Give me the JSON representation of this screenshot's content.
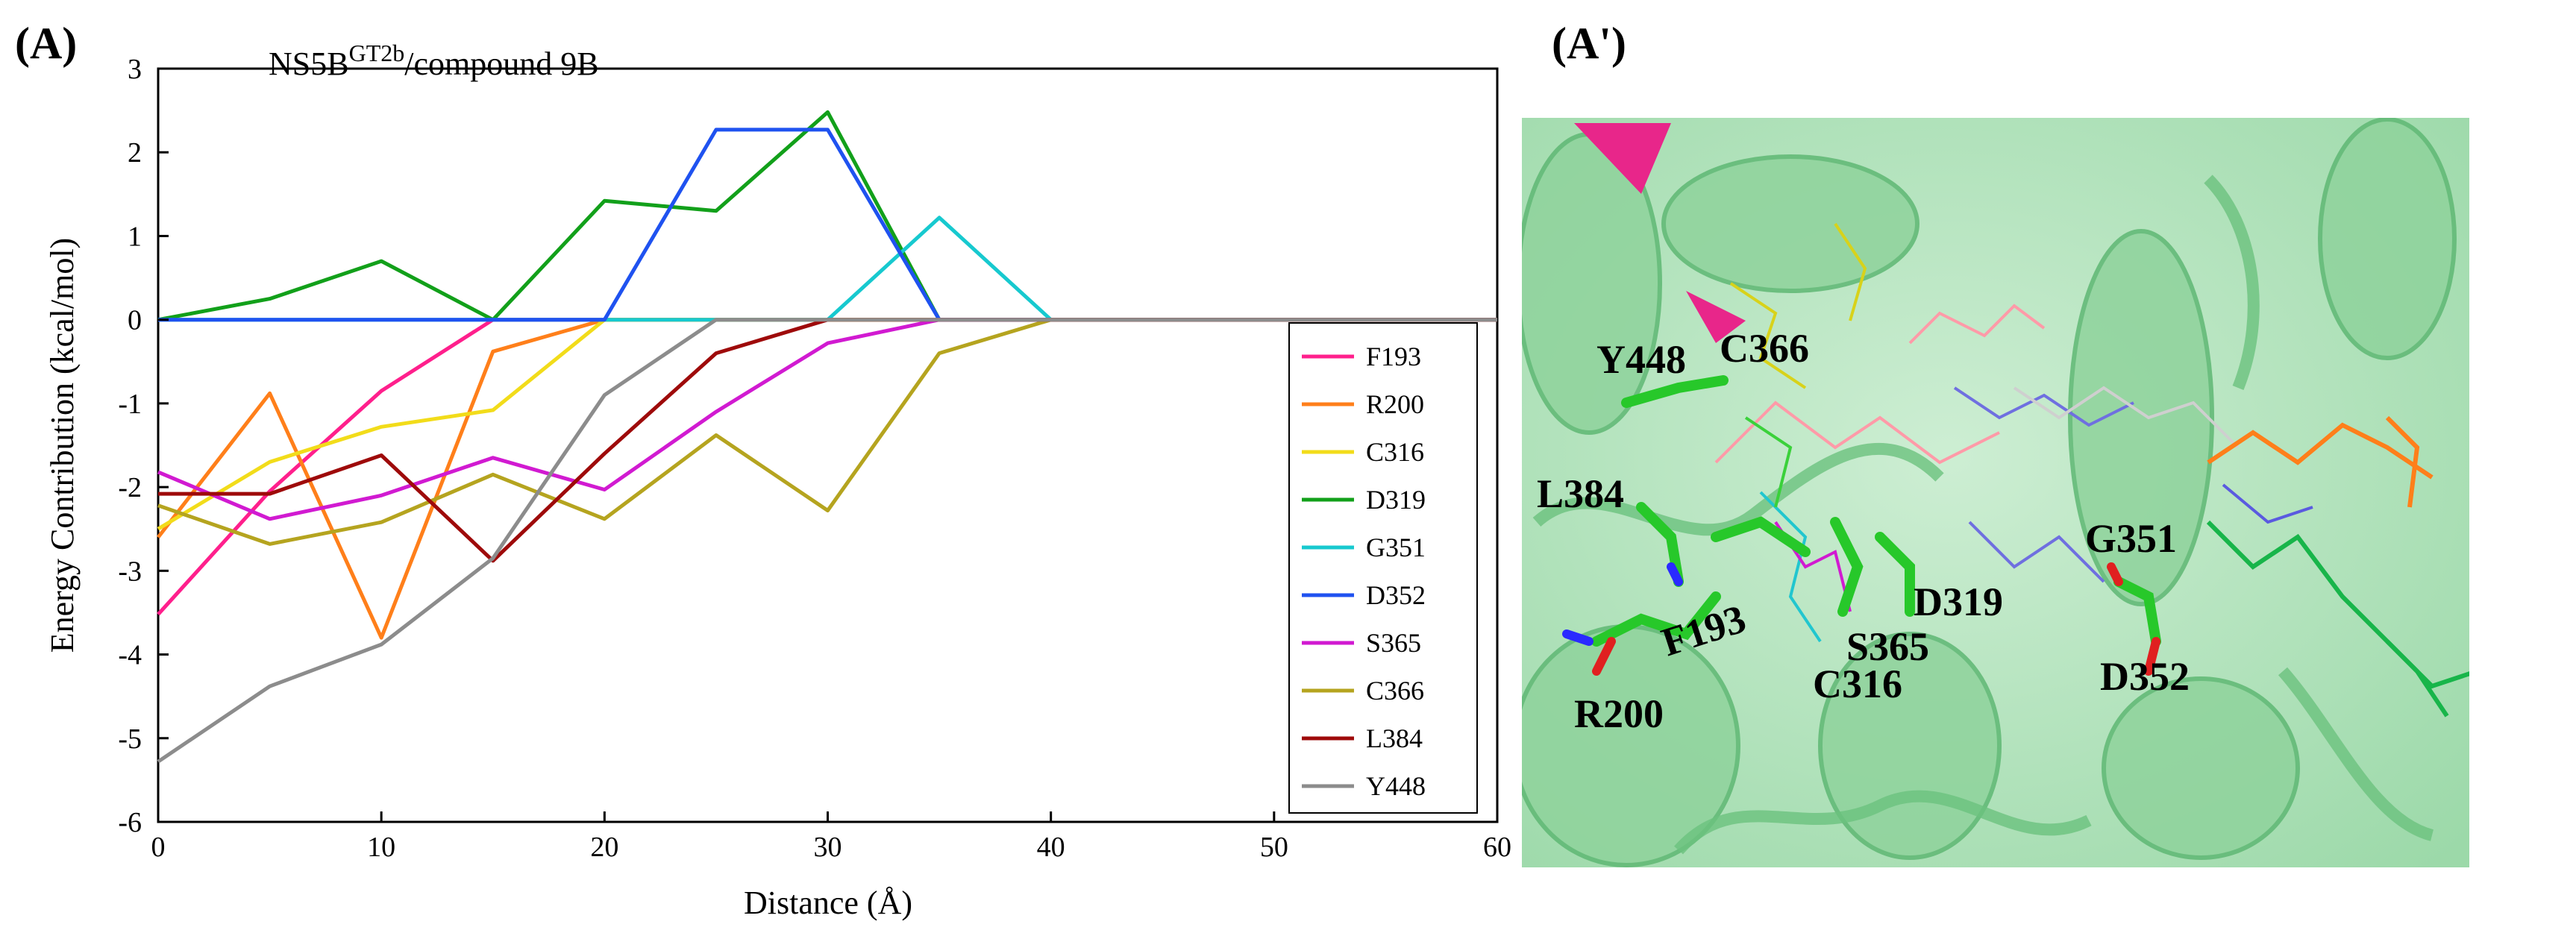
{
  "panel_a_label": "(A)",
  "panel_a_prime_label": "(A')",
  "chart_data": {
    "type": "line",
    "title": "NS5B",
    "title_superscript": "GT2b",
    "title_suffix": "/compound 9B",
    "xlabel": "Distance (Å)",
    "ylabel": "Energy Contribution (kcal/mol)",
    "xlim": [
      0,
      60
    ],
    "ylim": [
      -6,
      3
    ],
    "xticks": [
      0,
      10,
      20,
      30,
      40,
      50,
      60
    ],
    "yticks": [
      3,
      2,
      1,
      0,
      -1,
      -2,
      -3,
      -4,
      -5,
      -6
    ],
    "grid": false,
    "legend_position": "right",
    "series": [
      {
        "name": "F193",
        "color": "#ff1f8c",
        "x": [
          0,
          5,
          10,
          15,
          60
        ],
        "values": [
          -3.52,
          -2.05,
          -0.85,
          0,
          0
        ]
      },
      {
        "name": "R200",
        "color": "#ff7f1a",
        "x": [
          0,
          5,
          10,
          15,
          20,
          60
        ],
        "values": [
          -2.6,
          -0.88,
          -3.8,
          -0.38,
          0,
          0
        ]
      },
      {
        "name": "C316",
        "color": "#f2dc1a",
        "x": [
          0,
          5,
          10,
          15,
          20,
          60
        ],
        "values": [
          -2.5,
          -1.7,
          -1.28,
          -1.08,
          0,
          0
        ]
      },
      {
        "name": "D319",
        "color": "#12a01a",
        "x": [
          0,
          5,
          10,
          15,
          20,
          25,
          30,
          35,
          60
        ],
        "values": [
          0,
          0.25,
          0.7,
          0,
          1.42,
          1.3,
          2.48,
          0,
          0
        ]
      },
      {
        "name": "G351",
        "color": "#17c9cf",
        "x": [
          0,
          30,
          35,
          40,
          60
        ],
        "values": [
          0,
          0,
          1.22,
          0,
          0
        ]
      },
      {
        "name": "D352",
        "color": "#1f52f0",
        "x": [
          0,
          20,
          25,
          30,
          35,
          60
        ],
        "values": [
          0,
          0,
          2.27,
          2.27,
          0,
          0
        ]
      },
      {
        "name": "S365",
        "color": "#d11ad1",
        "x": [
          0,
          5,
          10,
          15,
          20,
          25,
          30,
          35,
          60
        ],
        "values": [
          -1.82,
          -2.38,
          -2.1,
          -1.65,
          -2.03,
          -1.1,
          -0.28,
          0,
          0
        ]
      },
      {
        "name": "C366",
        "color": "#b5a41f",
        "x": [
          0,
          5,
          10,
          15,
          20,
          25,
          30,
          35,
          40,
          60
        ],
        "values": [
          -2.22,
          -2.68,
          -2.42,
          -1.85,
          -2.38,
          -1.38,
          -2.28,
          -0.4,
          0,
          0
        ]
      },
      {
        "name": "L384",
        "color": "#9e0a0a",
        "x": [
          0,
          5,
          10,
          15,
          20,
          25,
          30,
          60
        ],
        "values": [
          -2.08,
          -2.08,
          -1.62,
          -2.88,
          -1.6,
          -0.4,
          0,
          0
        ]
      },
      {
        "name": "Y448",
        "color": "#8c8c8c",
        "x": [
          0,
          5,
          10,
          15,
          20,
          25,
          60
        ],
        "values": [
          -5.28,
          -4.38,
          -3.88,
          -2.85,
          -0.9,
          0,
          0
        ]
      }
    ]
  },
  "structure_labels": {
    "y448": "Y448",
    "c366": "C366",
    "l384": "L384",
    "f193": "F193",
    "s365": "S365",
    "d319": "D319",
    "c316": "C316",
    "r200": "R200",
    "g351": "G351",
    "d352": "D352"
  }
}
